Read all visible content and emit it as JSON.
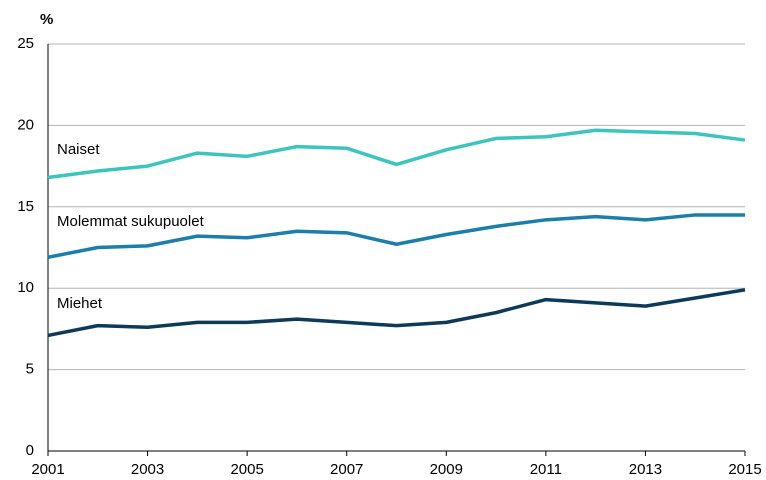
{
  "chart_data": {
    "type": "line",
    "y_label": "%",
    "x": [
      2001,
      2002,
      2003,
      2004,
      2005,
      2006,
      2007,
      2008,
      2009,
      2010,
      2011,
      2012,
      2013,
      2014,
      2015
    ],
    "series": [
      {
        "name": "Naiset",
        "color": "#3cc4bd",
        "values": [
          16.8,
          17.2,
          17.5,
          18.3,
          18.1,
          18.7,
          18.6,
          17.6,
          18.5,
          19.2,
          19.3,
          19.7,
          19.6,
          19.5,
          19.1
        ]
      },
      {
        "name": "Molemmat sukupuolet",
        "color": "#1c7eaa",
        "values": [
          11.9,
          12.5,
          12.6,
          13.2,
          13.1,
          13.5,
          13.4,
          12.7,
          13.3,
          13.8,
          14.2,
          14.4,
          14.2,
          14.5,
          14.5
        ]
      },
      {
        "name": "Miehet",
        "color": "#0e3a5a",
        "values": [
          7.1,
          7.7,
          7.6,
          7.9,
          7.9,
          8.1,
          7.9,
          7.7,
          7.9,
          8.5,
          9.3,
          9.1,
          8.9,
          9.4,
          9.9
        ]
      }
    ],
    "xlim": [
      2001,
      2015
    ],
    "xticks": [
      2001,
      2003,
      2005,
      2007,
      2009,
      2011,
      2013,
      2015
    ],
    "ylim": [
      0,
      25
    ],
    "yticks": [
      0,
      5,
      10,
      15,
      20,
      25
    ],
    "grid": true
  }
}
